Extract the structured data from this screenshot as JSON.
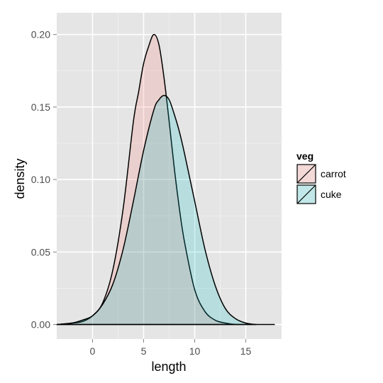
{
  "chart_data": {
    "type": "area",
    "subtype": "density",
    "title": "",
    "xlabel": "length",
    "ylabel": "density",
    "xlim": [
      -3.5,
      18.5
    ],
    "ylim": [
      -0.01,
      0.215
    ],
    "x_ticks": [
      0,
      5,
      10,
      15
    ],
    "x_tick_labels": [
      "0",
      "5",
      "10",
      "15"
    ],
    "y_ticks": [
      0.0,
      0.05,
      0.1,
      0.15,
      0.2
    ],
    "y_tick_labels": [
      "0.00",
      "0.05",
      "0.10",
      "0.15",
      "0.20"
    ],
    "grid": true,
    "legend": {
      "title": "veg",
      "placement": "right"
    },
    "series": [
      {
        "name": "carrot",
        "fill": "#f8766d",
        "x": [
          -3.5,
          -2,
          -1,
          0,
          1,
          2,
          3,
          4,
          4.5,
          5,
          5.5,
          6,
          6.5,
          7,
          7.5,
          8,
          8.5,
          9,
          10,
          11,
          12,
          13,
          14,
          15,
          16
        ],
        "y": [
          0.0,
          0.001,
          0.002,
          0.006,
          0.015,
          0.038,
          0.08,
          0.14,
          0.16,
          0.18,
          0.192,
          0.2,
          0.193,
          0.17,
          0.14,
          0.108,
          0.08,
          0.057,
          0.024,
          0.009,
          0.003,
          0.001,
          0.0,
          0.0,
          0.0
        ]
      },
      {
        "name": "cuke",
        "fill": "#00bfc4",
        "x": [
          -3.5,
          -2,
          -1,
          0,
          1,
          2,
          3,
          4,
          5,
          6,
          6.5,
          7,
          7.5,
          8,
          8.5,
          9,
          10,
          11,
          12,
          13,
          14,
          15,
          16,
          17,
          17.8
        ],
        "y": [
          0.0,
          0.001,
          0.003,
          0.006,
          0.014,
          0.028,
          0.052,
          0.085,
          0.12,
          0.148,
          0.155,
          0.158,
          0.155,
          0.145,
          0.133,
          0.118,
          0.085,
          0.052,
          0.027,
          0.011,
          0.004,
          0.001,
          0.0,
          0.0,
          0.0
        ]
      }
    ]
  }
}
